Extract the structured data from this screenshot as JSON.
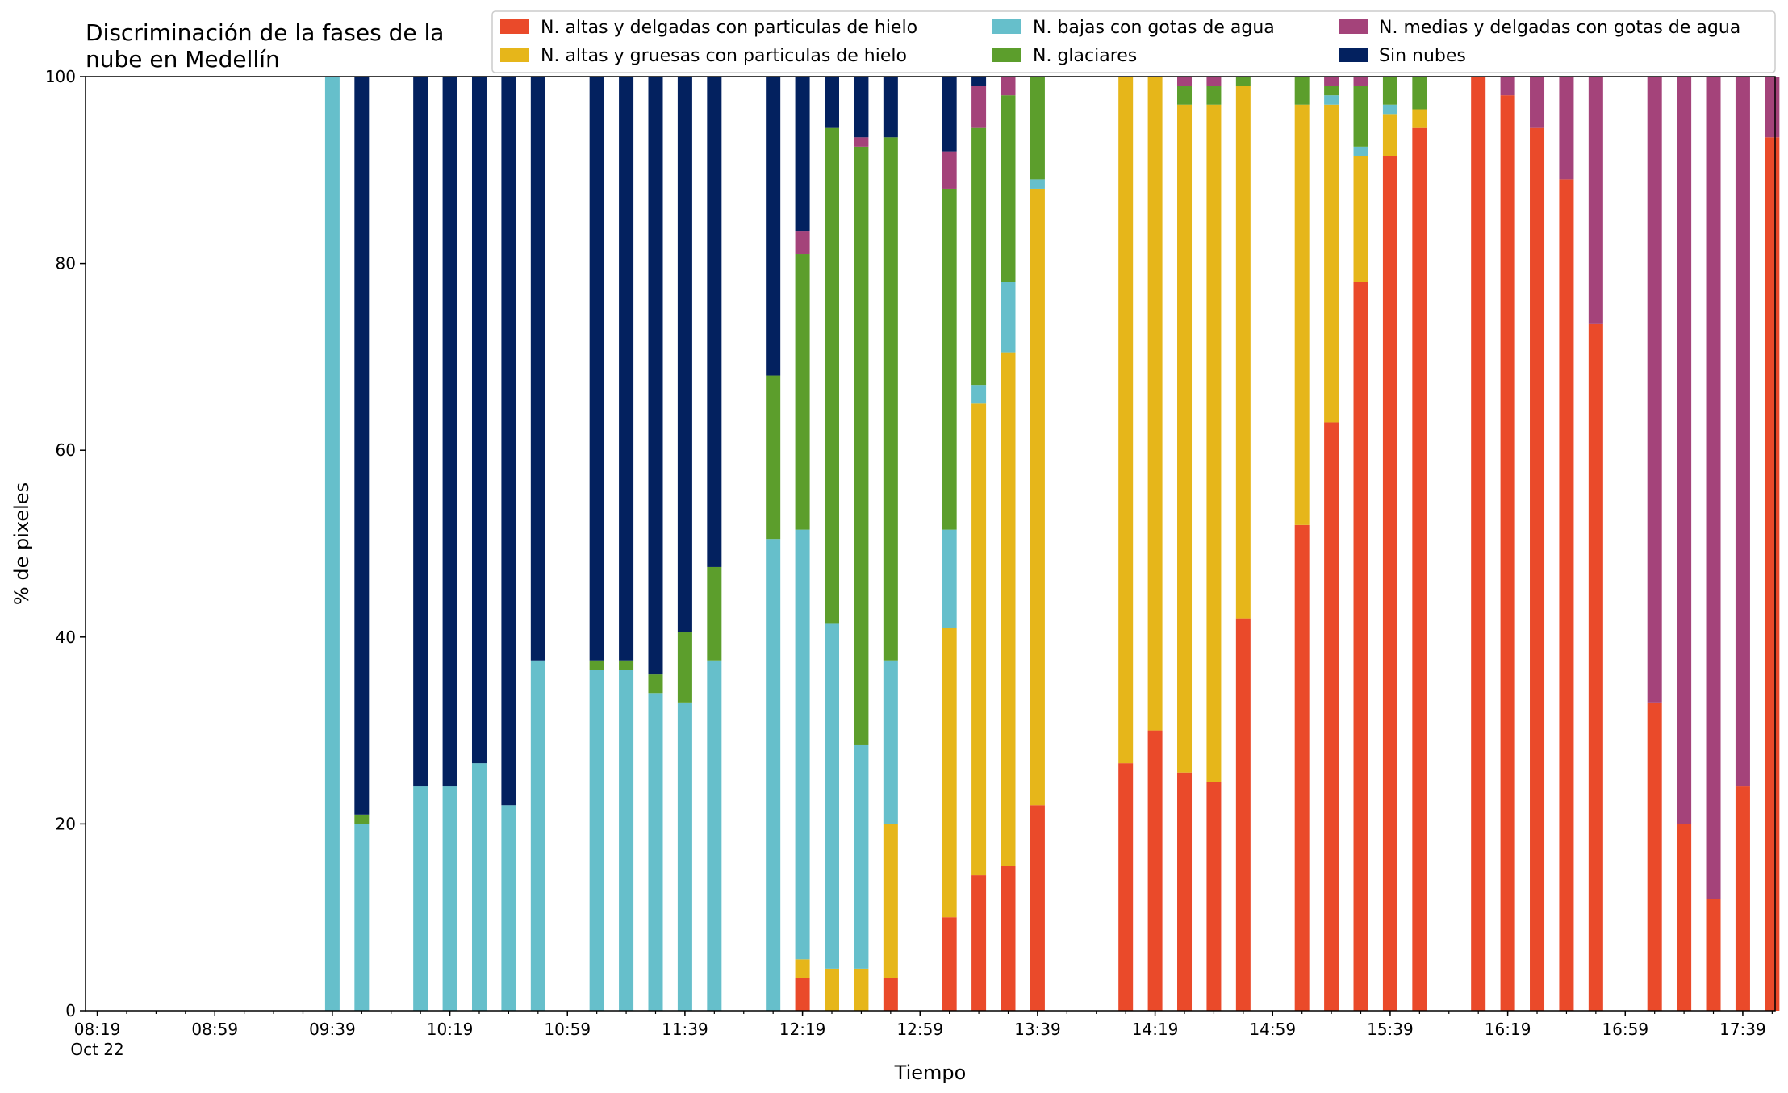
{
  "chart_data": {
    "type": "bar",
    "stacked": true,
    "title_line1": "Discriminación de la fases de la",
    "title_line2": "nube en Medellín",
    "xlabel": "Tiempo",
    "ylabel": "% de pixeles",
    "ylim": [
      0,
      100
    ],
    "yticks": [
      0,
      20,
      40,
      60,
      80,
      100
    ],
    "x_range_minutes": [
      "08:15",
      "17:50"
    ],
    "xticks": [
      {
        "time": "08:19",
        "label": "08:19",
        "sublabel": "Oct 22"
      },
      {
        "time": "08:59",
        "label": "08:59"
      },
      {
        "time": "09:39",
        "label": "09:39"
      },
      {
        "time": "10:19",
        "label": "10:19"
      },
      {
        "time": "10:59",
        "label": "10:59"
      },
      {
        "time": "11:39",
        "label": "11:39"
      },
      {
        "time": "12:19",
        "label": "12:19"
      },
      {
        "time": "12:59",
        "label": "12:59"
      },
      {
        "time": "13:39",
        "label": "13:39"
      },
      {
        "time": "14:19",
        "label": "14:19"
      },
      {
        "time": "14:59",
        "label": "14:59"
      },
      {
        "time": "15:39",
        "label": "15:39"
      },
      {
        "time": "16:19",
        "label": "16:19"
      },
      {
        "time": "16:59",
        "label": "16:59"
      },
      {
        "time": "17:39",
        "label": "17:39"
      }
    ],
    "grid": false,
    "legend_position": "top-right",
    "series": [
      {
        "name": "N. altas y delgadas con particulas de hielo",
        "color": "#ea4a2a"
      },
      {
        "name": "N. altas y gruesas con particulas de hielo",
        "color": "#e6b61a"
      },
      {
        "name": "N. bajas con gotas de agua",
        "color": "#66bfcb"
      },
      {
        "name": "N. glaciares",
        "color": "#5c9e2c"
      },
      {
        "name": "N. medias y delgadas con gotas de agua",
        "color": "#a4437a"
      },
      {
        "name": "Sin nubes",
        "color": "#03215f"
      }
    ],
    "bars": [
      {
        "time": "09:39",
        "values": [
          0,
          0,
          100,
          0,
          0,
          0
        ]
      },
      {
        "time": "09:49",
        "values": [
          0,
          0,
          20,
          1,
          0,
          79
        ]
      },
      {
        "time": "10:09",
        "values": [
          0,
          0,
          24,
          0,
          0,
          76
        ]
      },
      {
        "time": "10:19",
        "values": [
          0,
          0,
          24,
          0,
          0,
          76
        ]
      },
      {
        "time": "10:29",
        "values": [
          0,
          0,
          26.5,
          0,
          0,
          73.5
        ]
      },
      {
        "time": "10:39",
        "values": [
          0,
          0,
          22,
          0,
          0,
          78
        ]
      },
      {
        "time": "10:49",
        "values": [
          0,
          0,
          37.5,
          0,
          0,
          62.5
        ]
      },
      {
        "time": "11:09",
        "values": [
          0,
          0,
          36.5,
          1,
          0,
          62.5
        ]
      },
      {
        "time": "11:19",
        "values": [
          0,
          0,
          36.5,
          1,
          0,
          62.5
        ]
      },
      {
        "time": "11:29",
        "values": [
          0,
          0,
          34,
          2,
          0,
          64
        ]
      },
      {
        "time": "11:39",
        "values": [
          0,
          0,
          33,
          7.5,
          0,
          59.5
        ]
      },
      {
        "time": "11:49",
        "values": [
          0,
          0,
          37.5,
          10,
          0,
          52.5
        ]
      },
      {
        "time": "12:09",
        "values": [
          0,
          0,
          50.5,
          17.5,
          0,
          32
        ]
      },
      {
        "time": "12:19",
        "values": [
          3.5,
          2,
          46,
          29.5,
          2.5,
          16.5
        ]
      },
      {
        "time": "12:29",
        "values": [
          0,
          4.5,
          37,
          53,
          0,
          5.5
        ]
      },
      {
        "time": "12:39",
        "values": [
          0,
          4.5,
          24,
          64,
          1,
          6.5
        ]
      },
      {
        "time": "12:49",
        "values": [
          3.5,
          16.5,
          17.5,
          56,
          0,
          6.5
        ]
      },
      {
        "time": "13:09",
        "values": [
          10,
          31,
          10.5,
          36.5,
          4,
          8
        ]
      },
      {
        "time": "13:19",
        "values": [
          14.5,
          50.5,
          2,
          27.5,
          4.5,
          1
        ]
      },
      {
        "time": "13:29",
        "values": [
          15.5,
          55,
          7.5,
          20,
          2,
          0
        ]
      },
      {
        "time": "13:39",
        "values": [
          22,
          66,
          1,
          11,
          0,
          0
        ]
      },
      {
        "time": "14:09",
        "values": [
          26.5,
          73.5,
          0,
          0,
          0,
          0
        ]
      },
      {
        "time": "14:19",
        "values": [
          30,
          70,
          0,
          0,
          0,
          0
        ]
      },
      {
        "time": "14:29",
        "values": [
          25.5,
          71.5,
          0,
          2,
          1,
          0
        ]
      },
      {
        "time": "14:39",
        "values": [
          24.5,
          72.5,
          0,
          2,
          1,
          0
        ]
      },
      {
        "time": "14:49",
        "values": [
          42,
          57,
          0,
          1,
          0,
          0
        ]
      },
      {
        "time": "15:09",
        "values": [
          52,
          45,
          0,
          3,
          0,
          0
        ]
      },
      {
        "time": "15:19",
        "values": [
          63,
          34,
          1,
          1,
          1,
          0
        ]
      },
      {
        "time": "15:29",
        "values": [
          78,
          13.5,
          1,
          6.5,
          1,
          0
        ]
      },
      {
        "time": "15:39",
        "values": [
          91.5,
          4.5,
          1,
          3,
          0,
          0
        ]
      },
      {
        "time": "15:49",
        "values": [
          94.5,
          2,
          0,
          3.5,
          0,
          0
        ]
      },
      {
        "time": "16:09",
        "values": [
          100,
          0,
          0,
          0,
          0,
          0
        ]
      },
      {
        "time": "16:19",
        "values": [
          98,
          0,
          0,
          0,
          2,
          0
        ]
      },
      {
        "time": "16:29",
        "values": [
          94.5,
          0,
          0,
          0,
          5.5,
          0
        ]
      },
      {
        "time": "16:39",
        "values": [
          89,
          0,
          0,
          0,
          11,
          0
        ]
      },
      {
        "time": "16:49",
        "values": [
          73.5,
          0,
          0,
          0,
          26.5,
          0
        ]
      },
      {
        "time": "17:09",
        "values": [
          33,
          0,
          0,
          0,
          67,
          0
        ]
      },
      {
        "time": "17:19",
        "values": [
          20,
          0,
          0,
          0,
          80,
          0
        ]
      },
      {
        "time": "17:29",
        "values": [
          12,
          0,
          0,
          0,
          88,
          0
        ]
      },
      {
        "time": "17:39",
        "values": [
          24,
          0,
          0,
          0,
          76,
          0
        ]
      },
      {
        "time": "17:49",
        "values": [
          93.5,
          0,
          0,
          0,
          6.5,
          0
        ]
      }
    ]
  }
}
